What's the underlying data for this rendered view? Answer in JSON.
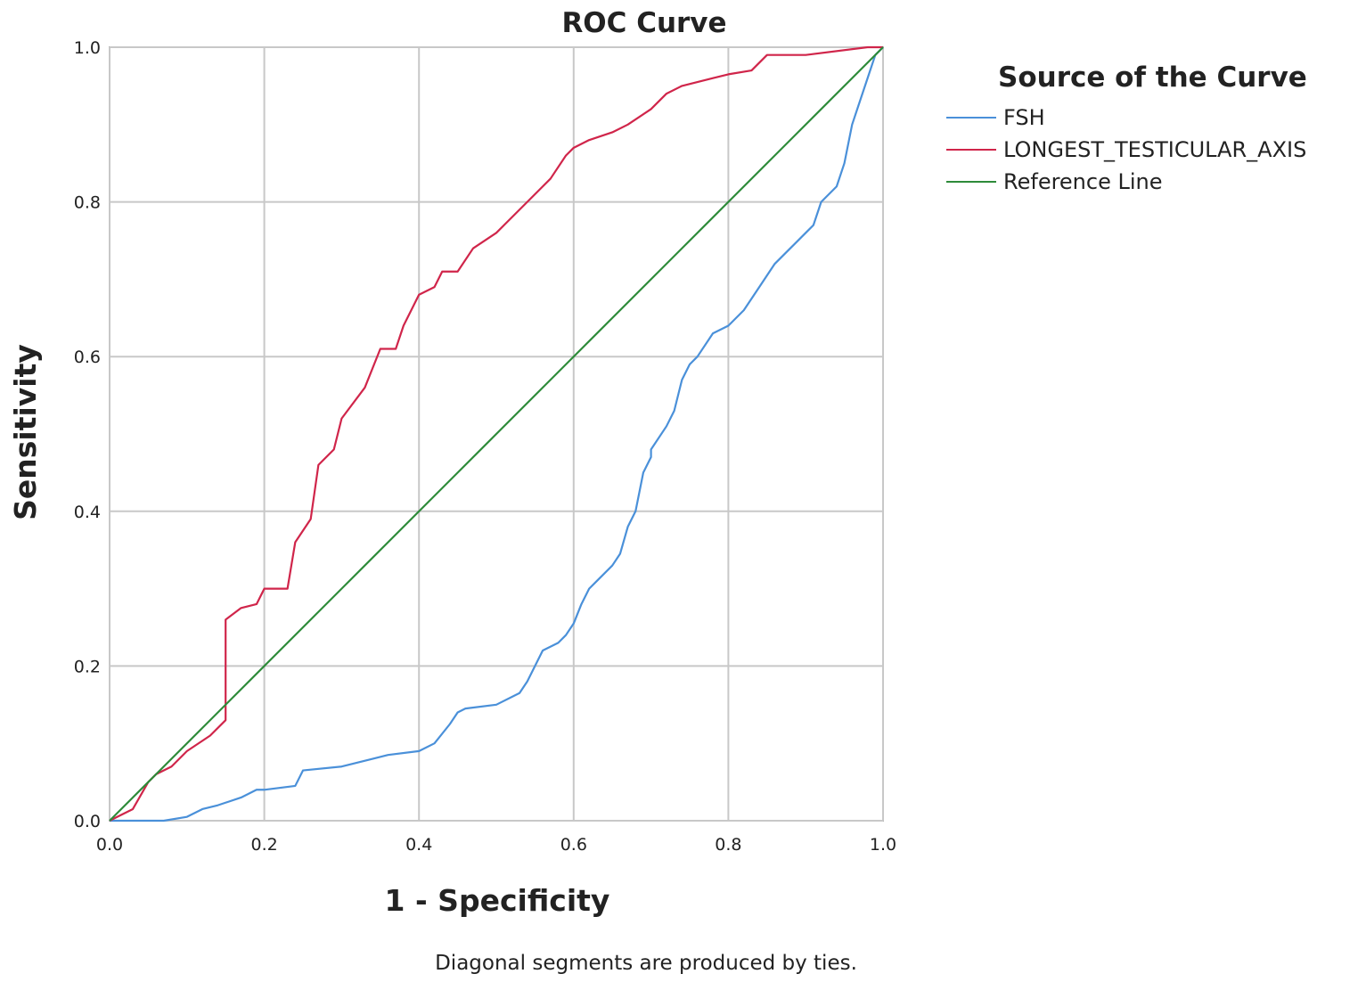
{
  "chart_data": {
    "type": "line",
    "title": "ROC Curve",
    "xlabel": "1 - Specificity",
    "ylabel": "Sensitivity",
    "xlim": [
      0,
      1
    ],
    "ylim": [
      0,
      1
    ],
    "x_ticks": [
      "0.0",
      "0.2",
      "0.4",
      "0.6",
      "0.8",
      "1.0"
    ],
    "y_ticks": [
      "0.0",
      "0.2",
      "0.4",
      "0.6",
      "0.8",
      "1.0"
    ],
    "grid": true,
    "legend": {
      "title": "Source of the Curve",
      "position": "right"
    },
    "footnote": "Diagonal segments are produced by ties.",
    "series": [
      {
        "name": "FSH",
        "color": "#4a90d9",
        "x": [
          0.0,
          0.07,
          0.1,
          0.12,
          0.14,
          0.17,
          0.19,
          0.2,
          0.24,
          0.25,
          0.3,
          0.34,
          0.36,
          0.4,
          0.42,
          0.44,
          0.45,
          0.46,
          0.5,
          0.53,
          0.54,
          0.55,
          0.56,
          0.58,
          0.59,
          0.6,
          0.61,
          0.62,
          0.63,
          0.65,
          0.66,
          0.67,
          0.68,
          0.69,
          0.7,
          0.7,
          0.72,
          0.73,
          0.74,
          0.75,
          0.76,
          0.78,
          0.8,
          0.82,
          0.84,
          0.86,
          0.88,
          0.9,
          0.91,
          0.92,
          0.94,
          0.95,
          0.96,
          0.97,
          0.98,
          0.99,
          1.0
        ],
        "y": [
          0.0,
          0.0,
          0.005,
          0.015,
          0.02,
          0.03,
          0.04,
          0.04,
          0.045,
          0.065,
          0.07,
          0.08,
          0.085,
          0.09,
          0.1,
          0.125,
          0.14,
          0.145,
          0.15,
          0.165,
          0.18,
          0.2,
          0.22,
          0.23,
          0.24,
          0.255,
          0.28,
          0.3,
          0.31,
          0.33,
          0.345,
          0.38,
          0.4,
          0.45,
          0.47,
          0.48,
          0.51,
          0.53,
          0.57,
          0.59,
          0.6,
          0.63,
          0.64,
          0.66,
          0.69,
          0.72,
          0.74,
          0.76,
          0.77,
          0.8,
          0.82,
          0.85,
          0.9,
          0.93,
          0.96,
          0.99,
          1.0
        ]
      },
      {
        "name": "LONGEST_TESTICULAR_AXIS",
        "color": "#d0254a",
        "x": [
          0.0,
          0.01,
          0.03,
          0.05,
          0.06,
          0.08,
          0.1,
          0.13,
          0.15,
          0.15,
          0.17,
          0.19,
          0.2,
          0.23,
          0.24,
          0.26,
          0.27,
          0.29,
          0.3,
          0.33,
          0.35,
          0.37,
          0.38,
          0.39,
          0.4,
          0.42,
          0.43,
          0.45,
          0.47,
          0.5,
          0.51,
          0.54,
          0.56,
          0.57,
          0.59,
          0.6,
          0.62,
          0.65,
          0.67,
          0.7,
          0.72,
          0.74,
          0.78,
          0.8,
          0.83,
          0.85,
          0.9,
          0.98,
          1.0
        ],
        "y": [
          0.0,
          0.005,
          0.015,
          0.05,
          0.06,
          0.07,
          0.09,
          0.11,
          0.13,
          0.26,
          0.275,
          0.28,
          0.3,
          0.3,
          0.36,
          0.39,
          0.46,
          0.48,
          0.52,
          0.56,
          0.61,
          0.61,
          0.64,
          0.66,
          0.68,
          0.69,
          0.71,
          0.71,
          0.74,
          0.76,
          0.77,
          0.8,
          0.82,
          0.83,
          0.86,
          0.87,
          0.88,
          0.89,
          0.9,
          0.92,
          0.94,
          0.95,
          0.96,
          0.965,
          0.97,
          0.99,
          0.99,
          1.0,
          1.0
        ]
      },
      {
        "name": "Reference Line",
        "color": "#2e8b3a",
        "x": [
          0.0,
          1.0
        ],
        "y": [
          0.0,
          1.0
        ]
      }
    ]
  }
}
